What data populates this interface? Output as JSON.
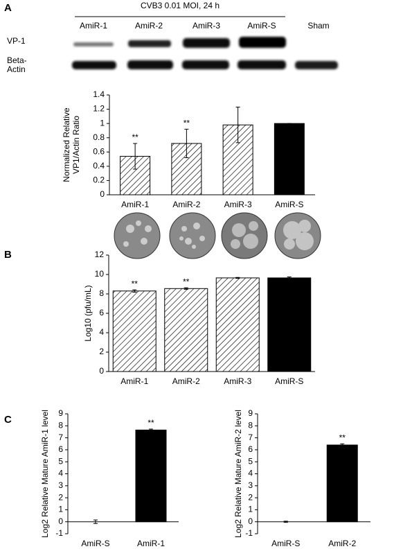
{
  "panel_labels": [
    "A",
    "B",
    "C"
  ],
  "blot": {
    "condition": "CVB3 0.01 MOI, 24 h",
    "lanes": [
      "AmiR-1",
      "AmiR-2",
      "AmiR-3",
      "AmiR-S",
      "Sham"
    ],
    "rows": [
      [
        "VP-1"
      ],
      [
        "Beta-",
        "Actin"
      ]
    ]
  },
  "chart_data": [
    {
      "type": "bar",
      "ylabel": [
        "Normalized Relative",
        "VP1/Actin Ratio"
      ],
      "categories": [
        "AmiR-1",
        "AmiR-2",
        "AmiR-3",
        "AmiR-S"
      ],
      "values": [
        0.54,
        0.72,
        0.98,
        1.0
      ],
      "errors": [
        0.18,
        0.2,
        0.25,
        0
      ],
      "bar_labels": [
        "**",
        "**",
        null,
        null
      ],
      "fills": [
        "hatch",
        "hatch",
        "hatch",
        "#000000"
      ],
      "ylim": [
        0,
        1.4
      ],
      "yticks": [
        0,
        0.2,
        0.4,
        0.6,
        0.8,
        1,
        1.2,
        1.4
      ]
    },
    {
      "type": "bar",
      "ylabel": [
        "Log10 (pfu/mL)"
      ],
      "categories": [
        "AmiR-1",
        "AmiR-2",
        "AmiR-3",
        "AmiR-S"
      ],
      "values": [
        8.3,
        8.55,
        9.65,
        9.65
      ],
      "errors": [
        0.12,
        0.08,
        0.05,
        0.1
      ],
      "bar_labels": [
        "**",
        "**",
        null,
        null
      ],
      "fills": [
        "hatch",
        "hatch",
        "hatch",
        "#000000"
      ],
      "ylim": [
        0,
        12
      ],
      "yticks": [
        0,
        2,
        4,
        6,
        8,
        10,
        12
      ]
    },
    {
      "type": "bar",
      "ylabel": [
        "Log2 Relative Mature AmiR-1 level"
      ],
      "categories": [
        "AmiR-S",
        "AmiR-1"
      ],
      "values": [
        0,
        7.65
      ],
      "errors": [
        0.15,
        0.08
      ],
      "bar_labels": [
        null,
        "**"
      ],
      "fills": [
        "#000000",
        "#000000"
      ],
      "ylim": [
        -1,
        9
      ],
      "yticks": [
        -1,
        0,
        1,
        2,
        3,
        4,
        5,
        6,
        7,
        8,
        9
      ]
    },
    {
      "type": "bar",
      "ylabel": [
        "Log2 Relative Mature AmiR-2 level"
      ],
      "categories": [
        "AmiR-S",
        "AmiR-2"
      ],
      "values": [
        0,
        6.4
      ],
      "errors": [
        0.05,
        0.1
      ],
      "bar_labels": [
        null,
        "**"
      ],
      "fills": [
        "#000000",
        "#000000"
      ],
      "ylim": [
        -1,
        9
      ],
      "yticks": [
        -1,
        0,
        1,
        2,
        3,
        4,
        5,
        6,
        7,
        8,
        9
      ]
    }
  ]
}
